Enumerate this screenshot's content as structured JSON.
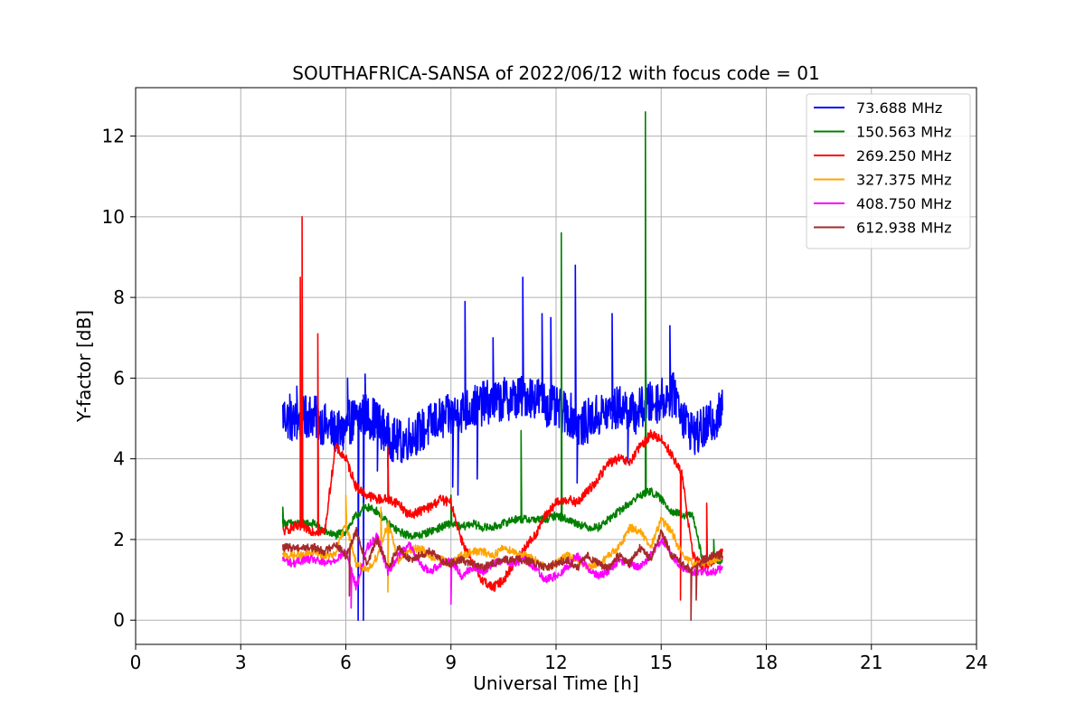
{
  "chart_data": {
    "type": "line",
    "title": "SOUTHAFRICA-SANSA of 2022/06/12 with focus code = 01",
    "xlabel": "Universal Time [h]",
    "ylabel": "Y-factor [dB]",
    "xlim": [
      0,
      24
    ],
    "ylim": [
      -0.6,
      13.2
    ],
    "xticks": [
      0,
      3,
      6,
      9,
      12,
      15,
      18,
      21,
      24
    ],
    "yticks": [
      0,
      2,
      4,
      6,
      8,
      10,
      12
    ],
    "grid": true,
    "legend_position": "top-right",
    "series": [
      {
        "name": "  73.688 MHz",
        "color": "#0000ff",
        "x": [
          4.2,
          4.5,
          4.8,
          5.0,
          5.3,
          5.6,
          5.9,
          6.1,
          6.3,
          6.5,
          6.8,
          7.0,
          7.3,
          7.6,
          7.9,
          8.2,
          8.5,
          8.8,
          9.1,
          9.4,
          9.7,
          10.0,
          10.3,
          10.6,
          10.9,
          11.2,
          11.5,
          11.8,
          12.1,
          12.4,
          12.7,
          13.0,
          13.3,
          13.6,
          13.9,
          14.2,
          14.5,
          14.8,
          15.1,
          15.4,
          15.7,
          16.0,
          16.3,
          16.55,
          16.75
        ],
        "y": [
          5.1,
          4.9,
          5.0,
          5.1,
          4.9,
          4.7,
          4.6,
          4.9,
          5.0,
          5.1,
          5.0,
          4.8,
          4.5,
          4.4,
          4.6,
          4.7,
          4.9,
          5.0,
          5.1,
          5.2,
          5.3,
          5.4,
          5.4,
          5.5,
          5.5,
          5.6,
          5.5,
          5.3,
          5.2,
          5.1,
          4.8,
          5.0,
          5.1,
          5.2,
          5.3,
          5.1,
          5.3,
          5.4,
          5.5,
          5.6,
          4.9,
          4.6,
          4.8,
          5.0,
          5.2
        ],
        "spikes": [
          [
            4.4,
            5.6
          ],
          [
            4.6,
            5.8
          ],
          [
            6.05,
            6.0
          ],
          [
            6.35,
            0.0
          ],
          [
            6.5,
            0.0
          ],
          [
            6.55,
            6.1
          ],
          [
            6.9,
            3.7
          ],
          [
            7.2,
            3.8
          ],
          [
            9.05,
            3.3
          ],
          [
            9.2,
            3.1
          ],
          [
            9.4,
            7.9
          ],
          [
            9.75,
            3.5
          ],
          [
            10.2,
            7.0
          ],
          [
            11.05,
            8.5
          ],
          [
            11.6,
            7.6
          ],
          [
            11.85,
            7.5
          ],
          [
            12.55,
            8.8
          ],
          [
            12.6,
            3.4
          ],
          [
            13.6,
            7.6
          ],
          [
            14.05,
            3.9
          ],
          [
            14.55,
            7.6
          ],
          [
            15.25,
            7.3
          ],
          [
            16.8,
            6.9
          ]
        ]
      },
      {
        "name": "150.563 MHz",
        "color": "#008000",
        "x": [
          4.2,
          4.5,
          4.8,
          5.1,
          5.4,
          5.7,
          6.0,
          6.3,
          6.6,
          6.9,
          7.2,
          7.5,
          7.8,
          8.1,
          8.4,
          8.7,
          9.0,
          9.3,
          9.6,
          9.9,
          10.2,
          10.5,
          10.8,
          11.1,
          11.4,
          11.7,
          12.0,
          12.3,
          12.6,
          12.9,
          13.2,
          13.5,
          13.8,
          14.1,
          14.4,
          14.7,
          15.0,
          15.3,
          15.6,
          15.9,
          16.2,
          16.5,
          16.75
        ],
        "y": [
          2.4,
          2.4,
          2.4,
          2.4,
          2.2,
          2.1,
          2.2,
          2.6,
          2.8,
          2.7,
          2.4,
          2.2,
          2.1,
          2.1,
          2.2,
          2.3,
          2.4,
          2.3,
          2.4,
          2.3,
          2.3,
          2.4,
          2.5,
          2.5,
          2.5,
          2.5,
          2.6,
          2.5,
          2.4,
          2.3,
          2.3,
          2.5,
          2.7,
          2.9,
          3.1,
          3.2,
          3.0,
          2.7,
          2.6,
          2.6,
          1.4,
          1.5,
          1.5
        ],
        "spikes": [
          [
            4.2,
            2.8
          ],
          [
            6.5,
            2.9
          ],
          [
            9.0,
            3.1
          ],
          [
            11.0,
            4.7
          ],
          [
            12.15,
            9.6
          ],
          [
            14.55,
            12.6
          ],
          [
            16.5,
            2.0
          ]
        ]
      },
      {
        "name": "269.250 MHz",
        "color": "#ff0000",
        "x": [
          4.2,
          4.5,
          4.8,
          5.1,
          5.4,
          5.7,
          6.0,
          6.3,
          6.6,
          6.9,
          7.2,
          7.5,
          7.8,
          8.1,
          8.4,
          8.7,
          9.0,
          9.3,
          9.6,
          9.9,
          10.2,
          10.5,
          10.8,
          11.1,
          11.4,
          11.7,
          12.0,
          12.3,
          12.6,
          12.9,
          13.2,
          13.5,
          13.8,
          14.1,
          14.4,
          14.7,
          15.0,
          15.3,
          15.6,
          15.9,
          16.2,
          16.5,
          16.75
        ],
        "y": [
          2.2,
          2.3,
          2.3,
          2.2,
          2.2,
          4.3,
          4.0,
          3.3,
          3.1,
          3.0,
          3.0,
          2.9,
          2.6,
          2.7,
          2.8,
          3.0,
          2.9,
          2.0,
          1.4,
          1.0,
          0.8,
          1.0,
          1.4,
          1.8,
          2.1,
          2.6,
          2.9,
          3.0,
          2.9,
          3.2,
          3.5,
          3.9,
          4.0,
          3.9,
          4.3,
          4.6,
          4.5,
          4.1,
          3.6,
          1.6,
          1.3,
          1.5,
          1.7
        ],
        "spikes": [
          [
            4.75,
            10.0
          ],
          [
            4.7,
            8.5
          ],
          [
            5.2,
            7.1
          ],
          [
            7.2,
            4.3
          ],
          [
            15.55,
            0.5
          ],
          [
            16.3,
            2.9
          ]
        ]
      },
      {
        "name": "327.375 MHz",
        "color": "#ffa500",
        "x": [
          4.2,
          4.5,
          4.8,
          5.1,
          5.4,
          5.7,
          6.0,
          6.3,
          6.6,
          6.9,
          7.2,
          7.5,
          7.8,
          8.1,
          8.4,
          8.7,
          9.0,
          9.3,
          9.6,
          9.9,
          10.2,
          10.5,
          10.8,
          11.1,
          11.4,
          11.7,
          12.0,
          12.3,
          12.6,
          12.9,
          13.2,
          13.5,
          13.8,
          14.1,
          14.4,
          14.7,
          15.0,
          15.3,
          15.6,
          15.9,
          16.2,
          16.5,
          16.75
        ],
        "y": [
          1.6,
          1.6,
          1.6,
          1.7,
          1.6,
          1.6,
          2.4,
          1.4,
          1.2,
          1.6,
          2.4,
          1.5,
          1.7,
          1.8,
          1.6,
          1.5,
          1.4,
          1.6,
          1.7,
          1.7,
          1.6,
          1.8,
          1.7,
          1.6,
          1.5,
          1.3,
          1.4,
          1.6,
          1.5,
          1.3,
          1.4,
          1.6,
          1.8,
          2.3,
          2.2,
          1.8,
          2.5,
          2.2,
          1.6,
          1.4,
          1.4,
          1.5,
          1.6
        ],
        "spikes": [
          [
            6.0,
            3.1
          ],
          [
            7.0,
            2.8
          ],
          [
            7.2,
            0.7
          ]
        ]
      },
      {
        "name": "408.750 MHz",
        "color": "#ff00ff",
        "x": [
          4.2,
          4.5,
          4.8,
          5.1,
          5.4,
          5.7,
          6.0,
          6.3,
          6.6,
          6.9,
          7.2,
          7.5,
          7.8,
          8.1,
          8.4,
          8.7,
          9.0,
          9.3,
          9.6,
          9.9,
          10.2,
          10.5,
          10.8,
          11.1,
          11.4,
          11.7,
          12.0,
          12.3,
          12.6,
          12.9,
          13.2,
          13.5,
          13.8,
          14.1,
          14.4,
          14.7,
          15.0,
          15.3,
          15.6,
          15.9,
          16.2,
          16.5,
          16.75
        ],
        "y": [
          1.5,
          1.4,
          1.5,
          1.5,
          1.4,
          1.5,
          1.7,
          0.8,
          1.8,
          2.1,
          1.2,
          1.6,
          1.9,
          1.4,
          1.2,
          1.4,
          1.5,
          1.1,
          1.3,
          1.2,
          1.4,
          1.5,
          1.4,
          1.5,
          1.3,
          1.0,
          1.1,
          1.3,
          1.6,
          1.3,
          1.1,
          1.2,
          1.5,
          1.4,
          1.3,
          1.6,
          2.0,
          1.6,
          1.3,
          1.2,
          1.2,
          1.2,
          1.3
        ],
        "spikes": [
          [
            6.15,
            0.3
          ],
          [
            9.0,
            0.4
          ]
        ]
      },
      {
        "name": "612.938 MHz",
        "color": "#a52a2a",
        "x": [
          4.2,
          4.5,
          4.8,
          5.1,
          5.4,
          5.7,
          6.0,
          6.3,
          6.6,
          6.9,
          7.2,
          7.5,
          7.8,
          8.1,
          8.4,
          8.7,
          9.0,
          9.3,
          9.6,
          9.9,
          10.2,
          10.5,
          10.8,
          11.1,
          11.4,
          11.7,
          12.0,
          12.3,
          12.6,
          12.9,
          13.2,
          13.5,
          13.8,
          14.1,
          14.4,
          14.7,
          15.0,
          15.3,
          15.6,
          15.9,
          16.2,
          16.5,
          16.75
        ],
        "y": [
          1.8,
          1.8,
          1.8,
          1.8,
          1.7,
          1.9,
          1.6,
          2.2,
          1.4,
          2.0,
          1.3,
          1.8,
          1.5,
          1.6,
          1.7,
          1.5,
          1.4,
          1.5,
          1.4,
          1.3,
          1.4,
          1.5,
          1.5,
          1.5,
          1.4,
          1.3,
          1.4,
          1.5,
          1.3,
          1.6,
          1.4,
          1.3,
          1.6,
          1.4,
          1.8,
          1.5,
          2.2,
          1.6,
          1.4,
          1.2,
          1.5,
          1.6,
          1.6
        ],
        "spikes": [
          [
            6.1,
            0.6
          ],
          [
            6.3,
            2.3
          ],
          [
            15.85,
            0.0
          ],
          [
            16.0,
            0.5
          ]
        ]
      }
    ]
  }
}
